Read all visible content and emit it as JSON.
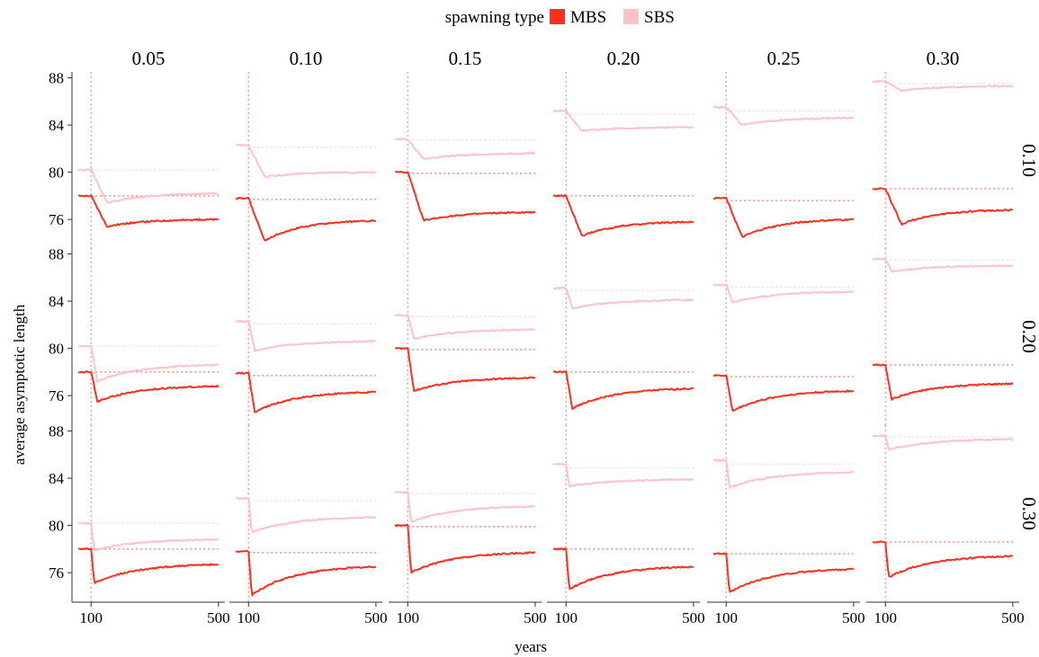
{
  "legend": {
    "title": "spawning type",
    "entries": [
      "MBS",
      "SBS"
    ]
  },
  "colors": {
    "MBS": "#ff2f1f",
    "SBS": "#ffc2ca",
    "MBS_ref": "#f07a6a",
    "SBS_ref": "#f7d2d8",
    "break_line": "#f29a92",
    "axis": "#333333"
  },
  "chart_data": {
    "type": "line",
    "xlabel": "years",
    "ylabel": "average asymptotic length",
    "x_ticks": [
      100,
      500
    ],
    "y_ticks": [
      76,
      80,
      84,
      88
    ],
    "xlim": [
      40,
      520
    ],
    "ylim": [
      73.5,
      88.5
    ],
    "column_labels": [
      "0.05",
      "0.10",
      "0.15",
      "0.20",
      "0.25",
      "0.30"
    ],
    "row_labels": [
      "0.10",
      "0.20",
      "0.30"
    ],
    "vline_x": 100,
    "series_names": [
      "MBS",
      "SBS"
    ],
    "panels": [
      {
        "row": "0.10",
        "col": "0.05",
        "MBS": {
          "pre": 78.0,
          "min": 75.4,
          "min_x": 150,
          "end": 76.0,
          "ref": 78.0
        },
        "SBS": {
          "pre": 80.2,
          "min": 77.4,
          "min_x": 150,
          "end": 78.2,
          "ref": 80.2
        }
      },
      {
        "row": "0.10",
        "col": "0.10",
        "MBS": {
          "pre": 77.8,
          "min": 74.2,
          "min_x": 150,
          "end": 75.9,
          "ref": 77.7
        },
        "SBS": {
          "pre": 82.3,
          "min": 79.6,
          "min_x": 150,
          "end": 80.0,
          "ref": 82.1
        }
      },
      {
        "row": "0.10",
        "col": "0.15",
        "MBS": {
          "pre": 80.0,
          "min": 75.9,
          "min_x": 150,
          "end": 76.6,
          "ref": 79.9
        },
        "SBS": {
          "pre": 82.8,
          "min": 81.1,
          "min_x": 150,
          "end": 81.6,
          "ref": 82.7
        }
      },
      {
        "row": "0.10",
        "col": "0.20",
        "MBS": {
          "pre": 78.0,
          "min": 74.6,
          "min_x": 150,
          "end": 75.8,
          "ref": 78.0
        },
        "SBS": {
          "pre": 85.2,
          "min": 83.5,
          "min_x": 150,
          "end": 83.8,
          "ref": 84.9
        }
      },
      {
        "row": "0.10",
        "col": "0.25",
        "MBS": {
          "pre": 77.8,
          "min": 74.5,
          "min_x": 150,
          "end": 76.0,
          "ref": 77.6
        },
        "SBS": {
          "pre": 85.5,
          "min": 84.0,
          "min_x": 150,
          "end": 84.6,
          "ref": 85.2
        }
      },
      {
        "row": "0.10",
        "col": "0.30",
        "MBS": {
          "pre": 78.6,
          "min": 75.6,
          "min_x": 150,
          "end": 76.8,
          "ref": 78.6
        },
        "SBS": {
          "pre": 87.7,
          "min": 86.9,
          "min_x": 150,
          "end": 87.3,
          "ref": 87.5
        }
      },
      {
        "row": "0.20",
        "col": "0.05",
        "MBS": {
          "pre": 78.0,
          "min": 75.5,
          "min_x": 120,
          "end": 76.8,
          "ref": 78.0
        },
        "SBS": {
          "pre": 80.2,
          "min": 77.2,
          "min_x": 120,
          "end": 78.6,
          "ref": 80.2
        }
      },
      {
        "row": "0.20",
        "col": "0.10",
        "MBS": {
          "pre": 77.9,
          "min": 74.6,
          "min_x": 120,
          "end": 76.3,
          "ref": 77.7
        },
        "SBS": {
          "pre": 82.3,
          "min": 79.8,
          "min_x": 120,
          "end": 80.6,
          "ref": 82.1
        }
      },
      {
        "row": "0.20",
        "col": "0.15",
        "MBS": {
          "pre": 80.0,
          "min": 76.4,
          "min_x": 120,
          "end": 77.5,
          "ref": 79.9
        },
        "SBS": {
          "pre": 82.8,
          "min": 80.8,
          "min_x": 120,
          "end": 81.6,
          "ref": 82.7
        }
      },
      {
        "row": "0.20",
        "col": "0.20",
        "MBS": {
          "pre": 78.0,
          "min": 74.9,
          "min_x": 120,
          "end": 76.6,
          "ref": 78.0
        },
        "SBS": {
          "pre": 85.1,
          "min": 83.4,
          "min_x": 120,
          "end": 84.1,
          "ref": 84.9
        }
      },
      {
        "row": "0.20",
        "col": "0.25",
        "MBS": {
          "pre": 77.7,
          "min": 74.7,
          "min_x": 120,
          "end": 76.4,
          "ref": 77.6
        },
        "SBS": {
          "pre": 85.4,
          "min": 83.9,
          "min_x": 120,
          "end": 84.8,
          "ref": 85.2
        }
      },
      {
        "row": "0.20",
        "col": "0.30",
        "MBS": {
          "pre": 78.6,
          "min": 75.7,
          "min_x": 120,
          "end": 77.0,
          "ref": 78.6
        },
        "SBS": {
          "pre": 87.6,
          "min": 86.5,
          "min_x": 120,
          "end": 87.0,
          "ref": 87.5
        }
      },
      {
        "row": "0.30",
        "col": "0.05",
        "MBS": {
          "pre": 78.0,
          "min": 75.1,
          "min_x": 110,
          "end": 76.7,
          "ref": 78.0
        },
        "SBS": {
          "pre": 80.2,
          "min": 77.9,
          "min_x": 110,
          "end": 78.8,
          "ref": 80.2
        }
      },
      {
        "row": "0.30",
        "col": "0.10",
        "MBS": {
          "pre": 77.8,
          "min": 74.1,
          "min_x": 110,
          "end": 76.5,
          "ref": 77.7
        },
        "SBS": {
          "pre": 82.3,
          "min": 79.4,
          "min_x": 110,
          "end": 80.7,
          "ref": 82.1
        }
      },
      {
        "row": "0.30",
        "col": "0.15",
        "MBS": {
          "pre": 80.0,
          "min": 76.0,
          "min_x": 110,
          "end": 77.7,
          "ref": 79.9
        },
        "SBS": {
          "pre": 82.8,
          "min": 80.3,
          "min_x": 110,
          "end": 81.6,
          "ref": 82.7
        }
      },
      {
        "row": "0.30",
        "col": "0.20",
        "MBS": {
          "pre": 78.0,
          "min": 74.6,
          "min_x": 110,
          "end": 76.5,
          "ref": 78.0
        },
        "SBS": {
          "pre": 85.2,
          "min": 83.3,
          "min_x": 110,
          "end": 83.9,
          "ref": 84.9
        }
      },
      {
        "row": "0.30",
        "col": "0.25",
        "MBS": {
          "pre": 77.6,
          "min": 74.3,
          "min_x": 110,
          "end": 76.3,
          "ref": 77.6
        },
        "SBS": {
          "pre": 85.5,
          "min": 83.2,
          "min_x": 110,
          "end": 84.5,
          "ref": 85.2
        }
      },
      {
        "row": "0.30",
        "col": "0.30",
        "MBS": {
          "pre": 78.6,
          "min": 75.6,
          "min_x": 110,
          "end": 77.4,
          "ref": 78.6
        },
        "SBS": {
          "pre": 87.6,
          "min": 86.4,
          "min_x": 110,
          "end": 87.3,
          "ref": 87.5
        }
      }
    ]
  }
}
